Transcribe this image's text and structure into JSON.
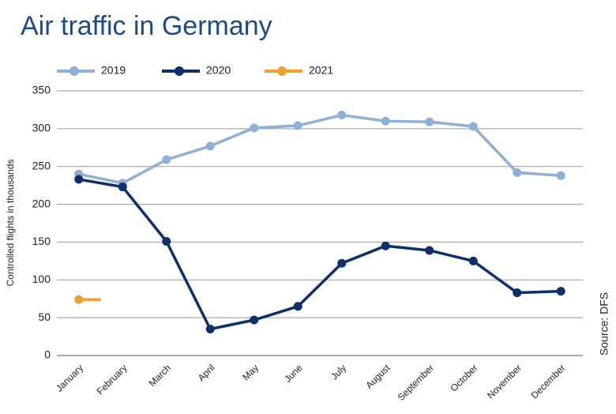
{
  "chart_data": {
    "type": "line",
    "title": "Air traffic in Germany",
    "y_label": "Controlled flights in thousands",
    "source": "Source: DFS",
    "categories": [
      "January",
      "February",
      "March",
      "April",
      "May",
      "June",
      "July",
      "August",
      "September",
      "October",
      "November",
      "December"
    ],
    "series": [
      {
        "name": "2019",
        "color": "#8fafd6",
        "values": [
          240,
          228,
          259,
          277,
          301,
          304,
          318,
          310,
          309,
          303,
          242,
          238
        ]
      },
      {
        "name": "2020",
        "color": "#0e2f6b",
        "values": [
          233,
          223,
          151,
          35,
          47,
          65,
          122,
          145,
          139,
          125,
          83,
          85
        ]
      },
      {
        "name": "2021",
        "color": "#f0a030",
        "values": [
          74,
          null,
          null,
          null,
          null,
          null,
          null,
          null,
          null,
          null,
          null,
          null
        ]
      }
    ],
    "ylim": [
      0,
      350
    ],
    "yticks": [
      0,
      50,
      100,
      150,
      200,
      250,
      300,
      350
    ],
    "grid": true
  }
}
